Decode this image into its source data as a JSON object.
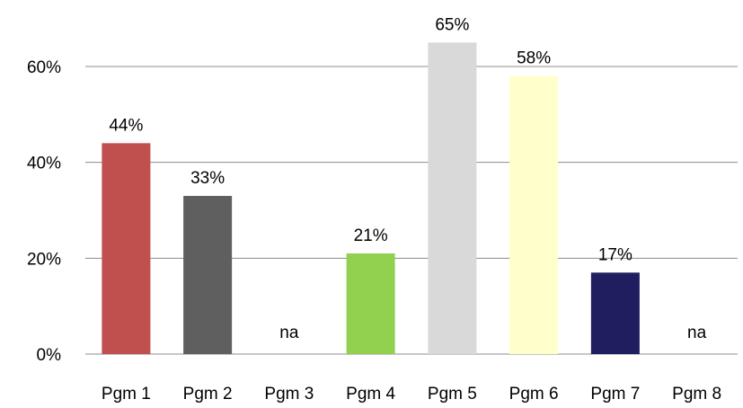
{
  "chart_data": {
    "type": "bar",
    "categories": [
      "Pgm 1",
      "Pgm 2",
      "Pgm 3",
      "Pgm 4",
      "Pgm 5",
      "Pgm 6",
      "Pgm 7",
      "Pgm 8"
    ],
    "values": [
      44,
      33,
      null,
      21,
      65,
      58,
      17,
      null
    ],
    "data_labels": [
      "44%",
      "33%",
      "na",
      "21%",
      "65%",
      "58%",
      "17%",
      "na"
    ],
    "colors": [
      "#c0504d",
      "#5f5f5f",
      "#ffffff",
      "#92d050",
      "#d9d9d9",
      "#ffffcc",
      "#1f1f5f",
      "#ffffff"
    ],
    "title": "",
    "xlabel": "",
    "ylabel": "",
    "ylim": [
      0,
      60
    ],
    "yticks": [
      0,
      20,
      40,
      60
    ],
    "ytick_labels": [
      "0%",
      "20%",
      "40%",
      "60%"
    ],
    "grid": true,
    "legend": "none"
  }
}
